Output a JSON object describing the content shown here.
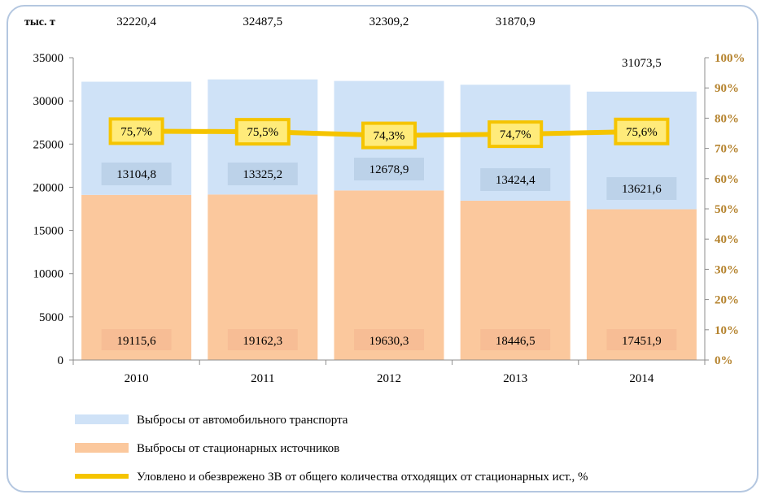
{
  "chart_data": {
    "type": "bar",
    "stacked": true,
    "unit_label": "тыс. т",
    "categories": [
      "2010",
      "2011",
      "2012",
      "2013",
      "2014"
    ],
    "totals": [
      "32220,4",
      "32487,5",
      "32309,2",
      "31870,9",
      "31073,5"
    ],
    "series": [
      {
        "name": "Выбросы от стационарных источников",
        "values": [
          19115.6,
          19162.3,
          19630.3,
          18446.5,
          17451.9
        ],
        "labels": [
          "19115,6",
          "19162,3",
          "19630,3",
          "18446,5",
          "17451,9"
        ],
        "color": "#fbc89d"
      },
      {
        "name": "Выбросы от автомобильного транспорта",
        "values": [
          13104.8,
          13325.2,
          12678.9,
          13424.4,
          13621.6
        ],
        "labels": [
          "13104,8",
          "13325,2",
          "12678,9",
          "13424,4",
          "13621,6"
        ],
        "color": "#cfe2f7"
      }
    ],
    "line_series": {
      "name": "Уловлено и обезврежено ЗВ от общего количества отходящих от стационарных ист.,  %",
      "values": [
        75.7,
        75.5,
        74.3,
        74.7,
        75.6
      ],
      "labels": [
        "75,7%",
        "75,5%",
        "74,3%",
        "74,7%",
        "75,6%"
      ],
      "color": "#f5c400"
    },
    "y_left": {
      "min": 0,
      "max": 35000,
      "ticks": [
        "0",
        "5000",
        "10000",
        "15000",
        "20000",
        "25000",
        "30000",
        "35000"
      ]
    },
    "y_right": {
      "min": 0,
      "max": 100,
      "ticks": [
        "0%",
        "10%",
        "20%",
        "30%",
        "40%",
        "50%",
        "60%",
        "70%",
        "80%",
        "90%",
        "100%"
      ]
    },
    "grid": false,
    "legend_position": "bottom"
  }
}
